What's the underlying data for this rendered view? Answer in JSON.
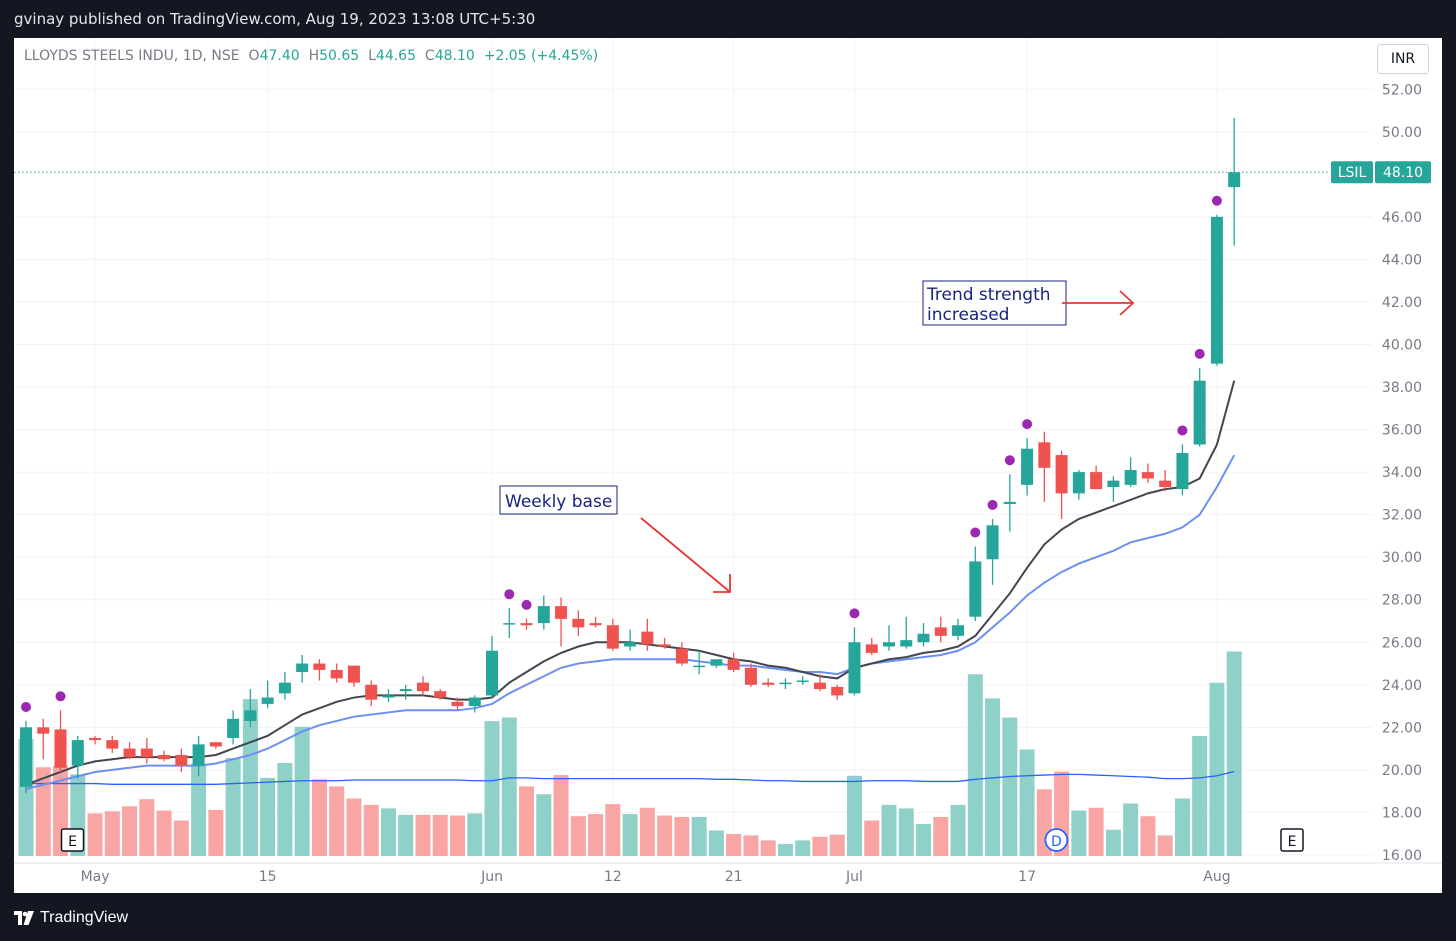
{
  "header": {
    "publish_text": "gvinay published on TradingView.com, Aug 19, 2023 13:08 UTC+5:30"
  },
  "footer": {
    "brand": "TradingView"
  },
  "currency_label": "INR",
  "chart_data": {
    "type": "candlestick",
    "title": "LLOYDS STEELS INDU, 1D, NSE",
    "ohlc_legend": {
      "o_label": "O",
      "o": "47.40",
      "h_label": "H",
      "h": "50.65",
      "l_label": "L",
      "l": "44.65",
      "c_label": "C",
      "c": "48.10",
      "change": "+2.05 (+4.45%)"
    },
    "y_ticks": [
      "52.00",
      "50.00",
      "46.00",
      "44.00",
      "42.00",
      "40.00",
      "38.00",
      "36.00",
      "34.00",
      "32.00",
      "30.00",
      "28.00",
      "26.00",
      "24.00",
      "22.00",
      "20.00",
      "18.00",
      "16.00"
    ],
    "y_range": [
      15.95,
      53.0
    ],
    "x_ticks": [
      {
        "label": "May",
        "index": 4
      },
      {
        "label": "15",
        "index": 14
      },
      {
        "label": "Jun",
        "index": 27
      },
      {
        "label": "12",
        "index": 34
      },
      {
        "label": "21",
        "index": 41
      },
      {
        "label": "Jul",
        "index": 48
      },
      {
        "label": "17",
        "index": 58
      },
      {
        "label": "Aug",
        "index": 69
      }
    ],
    "price_tag": {
      "symbol": "LSIL",
      "value": "48.10"
    },
    "last_price": 48.1,
    "colors": {
      "up": "#26a69a",
      "down": "#ef5350",
      "ema_short": "#434651",
      "ema_long": "#6d8ff1",
      "vol_ma": "#2962ff",
      "dot": "#9c27b0",
      "vol_up": "#8fd1c8",
      "vol_down": "#f8a5a3"
    },
    "candles": [
      [
        19.2,
        22.3,
        18.9,
        22.0
      ],
      [
        22.0,
        22.4,
        20.5,
        21.7
      ],
      [
        21.9,
        22.8,
        19.9,
        20.1
      ],
      [
        20.2,
        21.6,
        19.6,
        21.4
      ],
      [
        21.5,
        21.6,
        21.2,
        21.4
      ],
      [
        21.4,
        21.6,
        20.8,
        21.0
      ],
      [
        21.0,
        21.3,
        20.5,
        20.6
      ],
      [
        21.0,
        21.5,
        20.3,
        20.6
      ],
      [
        20.7,
        20.9,
        20.4,
        20.5
      ],
      [
        20.7,
        21.0,
        19.9,
        20.2
      ],
      [
        20.2,
        21.6,
        19.7,
        21.2
      ],
      [
        21.3,
        21.3,
        21.0,
        21.1
      ],
      [
        21.5,
        22.8,
        21.2,
        22.4
      ],
      [
        22.3,
        23.8,
        22.0,
        22.8
      ],
      [
        23.1,
        24.2,
        22.9,
        23.4
      ],
      [
        23.6,
        24.6,
        23.3,
        24.1
      ],
      [
        24.6,
        25.4,
        24.1,
        25.0
      ],
      [
        25.0,
        25.2,
        24.2,
        24.7
      ],
      [
        24.7,
        25.0,
        24.1,
        24.3
      ],
      [
        24.9,
        24.9,
        23.9,
        24.1
      ],
      [
        24.0,
        24.2,
        23.0,
        23.3
      ],
      [
        23.4,
        23.8,
        23.2,
        23.5
      ],
      [
        23.7,
        24.0,
        23.3,
        23.8
      ],
      [
        24.1,
        24.4,
        23.5,
        23.7
      ],
      [
        23.7,
        23.8,
        23.3,
        23.4
      ],
      [
        23.2,
        23.4,
        22.8,
        23.0
      ],
      [
        23.0,
        23.5,
        22.7,
        23.4
      ],
      [
        23.5,
        26.3,
        23.4,
        25.6
      ],
      [
        26.9,
        27.6,
        26.2,
        26.9
      ],
      [
        26.9,
        27.1,
        26.6,
        26.8
      ],
      [
        26.9,
        28.2,
        26.6,
        27.7
      ],
      [
        27.7,
        28.1,
        25.8,
        27.1
      ],
      [
        27.1,
        27.5,
        26.3,
        26.7
      ],
      [
        26.9,
        27.2,
        26.7,
        26.8
      ],
      [
        26.8,
        27.1,
        25.6,
        25.7
      ],
      [
        25.8,
        26.6,
        25.6,
        26.0
      ],
      [
        26.5,
        27.1,
        25.6,
        25.9
      ],
      [
        25.9,
        26.2,
        25.7,
        25.8
      ],
      [
        25.7,
        26.0,
        24.9,
        25.0
      ],
      [
        24.9,
        25.6,
        24.5,
        24.9
      ],
      [
        24.9,
        25.2,
        24.8,
        25.2
      ],
      [
        25.2,
        25.5,
        24.6,
        24.7
      ],
      [
        24.8,
        25.0,
        23.9,
        24.0
      ],
      [
        24.1,
        24.3,
        23.9,
        24.0
      ],
      [
        24.1,
        24.3,
        23.8,
        24.1
      ],
      [
        24.2,
        24.4,
        24.0,
        24.2
      ],
      [
        24.1,
        24.5,
        23.7,
        23.8
      ],
      [
        23.9,
        24.0,
        23.3,
        23.5
      ],
      [
        23.6,
        26.7,
        23.5,
        26.0
      ],
      [
        25.9,
        26.2,
        25.4,
        25.5
      ],
      [
        25.8,
        26.8,
        25.6,
        26.0
      ],
      [
        25.8,
        27.2,
        25.7,
        26.1
      ],
      [
        26.0,
        26.9,
        25.8,
        26.4
      ],
      [
        26.7,
        27.2,
        26.0,
        26.3
      ],
      [
        26.3,
        27.1,
        26.1,
        26.8
      ],
      [
        27.2,
        30.5,
        27.0,
        29.8
      ],
      [
        29.9,
        31.8,
        28.7,
        31.5
      ],
      [
        32.5,
        33.9,
        31.2,
        32.6
      ],
      [
        33.4,
        35.6,
        32.9,
        35.1
      ],
      [
        35.4,
        35.9,
        32.6,
        34.2
      ],
      [
        34.8,
        35.0,
        31.8,
        33.0
      ],
      [
        33.0,
        34.1,
        32.7,
        34.0
      ],
      [
        34.0,
        34.3,
        33.2,
        33.2
      ],
      [
        33.3,
        33.8,
        32.6,
        33.6
      ],
      [
        33.4,
        34.7,
        33.3,
        34.1
      ],
      [
        34.0,
        34.4,
        33.5,
        33.7
      ],
      [
        33.6,
        34.1,
        33.1,
        33.3
      ],
      [
        33.2,
        35.3,
        32.9,
        34.9
      ],
      [
        35.3,
        38.9,
        35.2,
        38.3
      ],
      [
        39.1,
        46.1,
        39.0,
        46.0
      ],
      [
        47.4,
        50.65,
        44.65,
        48.1
      ]
    ],
    "ema_short": [
      19.3,
      19.6,
      19.9,
      20.2,
      20.4,
      20.5,
      20.6,
      20.6,
      20.6,
      20.6,
      20.6,
      20.7,
      21.0,
      21.3,
      21.6,
      22.1,
      22.6,
      22.9,
      23.2,
      23.4,
      23.5,
      23.5,
      23.5,
      23.5,
      23.4,
      23.3,
      23.3,
      23.4,
      24.1,
      24.6,
      25.1,
      25.5,
      25.8,
      26.0,
      26.0,
      26.0,
      25.9,
      25.8,
      25.7,
      25.6,
      25.4,
      25.2,
      25.1,
      24.9,
      24.8,
      24.6,
      24.4,
      24.3,
      24.8,
      25.0,
      25.2,
      25.3,
      25.5,
      25.6,
      25.8,
      26.3,
      27.3,
      28.3,
      29.5,
      30.6,
      31.3,
      31.8,
      32.1,
      32.4,
      32.7,
      33.0,
      33.2,
      33.3,
      33.7,
      35.3,
      38.3
    ],
    "ema_long": [
      19.1,
      19.3,
      19.5,
      19.7,
      19.9,
      20.0,
      20.1,
      20.2,
      20.2,
      20.2,
      20.2,
      20.3,
      20.5,
      20.7,
      21.0,
      21.4,
      21.8,
      22.1,
      22.3,
      22.5,
      22.6,
      22.7,
      22.8,
      22.8,
      22.8,
      22.8,
      22.9,
      23.1,
      23.6,
      24.0,
      24.4,
      24.8,
      25.0,
      25.1,
      25.2,
      25.2,
      25.2,
      25.2,
      25.2,
      25.1,
      25.0,
      24.9,
      24.9,
      24.8,
      24.7,
      24.6,
      24.6,
      24.5,
      24.8,
      25.0,
      25.1,
      25.2,
      25.3,
      25.4,
      25.6,
      26.0,
      26.7,
      27.4,
      28.2,
      28.8,
      29.3,
      29.7,
      30.0,
      30.3,
      30.7,
      30.9,
      31.1,
      31.4,
      32.0,
      33.3,
      34.8
    ],
    "dots": [
      0,
      2,
      28,
      29,
      48,
      55,
      56,
      57,
      58,
      67,
      68,
      69
    ],
    "vol_area": {
      "top": 605,
      "bottom": 818
    },
    "volumes": [
      165,
      125,
      127,
      115,
      60,
      63,
      70,
      80,
      64,
      50,
      130,
      65,
      138,
      221,
      110,
      131,
      182,
      108,
      98,
      81,
      72,
      67,
      58,
      58,
      58,
      57,
      60,
      190,
      195,
      98,
      87,
      114,
      56,
      59,
      73,
      59,
      68,
      57,
      55,
      55,
      36,
      31,
      29,
      22,
      17,
      22,
      27,
      30,
      113,
      50,
      72,
      67,
      45,
      55,
      72,
      256,
      222,
      195,
      150,
      94,
      119,
      64,
      68,
      37,
      74,
      56,
      29,
      81,
      169,
      244,
      288
    ],
    "vol_ma": [
      102,
      102,
      102,
      102,
      102,
      101,
      101,
      101,
      101,
      101,
      101,
      101,
      102,
      103,
      104,
      105,
      106,
      106,
      106,
      107,
      107,
      107,
      107,
      107,
      107,
      107,
      106,
      106,
      110,
      110,
      109,
      109,
      109,
      109,
      109,
      109,
      109,
      109,
      109,
      109,
      108,
      108,
      107,
      106,
      106,
      105,
      105,
      105,
      105,
      106,
      106,
      106,
      105,
      105,
      105,
      108,
      110,
      112,
      113,
      114,
      115,
      115,
      114,
      113,
      112,
      111,
      109,
      109,
      110,
      113,
      119
    ],
    "earnings_markers": [
      {
        "label": "E",
        "index": 2
      },
      {
        "label": "E",
        "index": 74
      }
    ],
    "dividend_markers": [
      {
        "label": "D",
        "index": 59
      }
    ],
    "annotations": [
      {
        "text": "Weekly base"
      },
      {
        "text": "Trend strength increased",
        "lines": [
          "Trend strength",
          "increased"
        ]
      }
    ]
  }
}
